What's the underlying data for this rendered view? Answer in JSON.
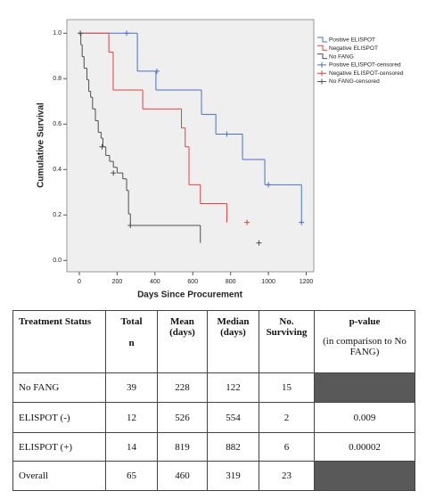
{
  "chart_data": {
    "type": "kaplan-meier",
    "xlabel": "Days Since Procurement",
    "ylabel": "Cumulative Survival",
    "xlim": [
      -66,
      1240
    ],
    "ylim": [
      -0.05,
      1.06
    ],
    "xticks": [
      0,
      200,
      400,
      600,
      800,
      1000,
      1200
    ],
    "yticks": [
      {
        "value": 0,
        "label": "0.0"
      },
      {
        "value": 0.2,
        "label": "0.2"
      },
      {
        "value": 0.4,
        "label": "0.4"
      },
      {
        "value": 0.6,
        "label": "0.6"
      },
      {
        "value": 0.8,
        "label": "0.8"
      },
      {
        "value": 1,
        "label": "1.0"
      }
    ],
    "series": [
      {
        "name": "Positive ELISPOT",
        "color": "#4a6fc4",
        "style": "step",
        "x": [
          0,
          307,
          405,
          646,
          722,
          863,
          981,
          1175
        ],
        "values": [
          1.0,
          0.833,
          0.75,
          0.643,
          0.556,
          0.444,
          0.333,
          0.167
        ]
      },
      {
        "name": "Negative ELISPOT",
        "color": "#e2413f",
        "style": "step",
        "x": [
          0,
          156,
          179,
          335,
          540,
          560,
          580,
          640,
          780
        ],
        "values": [
          1.0,
          0.917,
          0.75,
          0.667,
          0.583,
          0.5,
          0.333,
          0.25,
          0.167
        ]
      },
      {
        "name": "No FANG",
        "color": "#4d4d4d",
        "style": "step",
        "x": [
          0,
          8,
          15,
          25,
          40,
          50,
          60,
          70,
          85,
          100,
          115,
          125,
          140,
          160,
          180,
          200,
          230,
          250,
          260,
          270,
          640
        ],
        "values": [
          1.0,
          0.949,
          0.897,
          0.846,
          0.795,
          0.744,
          0.718,
          0.667,
          0.615,
          0.564,
          0.538,
          0.5,
          0.462,
          0.436,
          0.41,
          0.385,
          0.359,
          0.308,
          0.205,
          0.154,
          0.077
        ]
      },
      {
        "name": "Positive ELISPOT-censored",
        "color": "#4a6fc4",
        "style": "censor",
        "x": [
          250,
          410,
          780,
          1000,
          1175
        ],
        "values": [
          1.0,
          0.833,
          0.556,
          0.333,
          0.167
        ]
      },
      {
        "name": "Negative ELISPOT-censored",
        "color": "#e2413f",
        "style": "censor",
        "x": [
          887
        ],
        "values": [
          0.167
        ]
      },
      {
        "name": "No FANG-censored",
        "color": "#4d4d4d",
        "style": "censor",
        "x": [
          5,
          120,
          180,
          270,
          950
        ],
        "values": [
          1.0,
          0.5,
          0.385,
          0.154,
          0.077
        ]
      }
    ]
  },
  "table": {
    "header": [
      [
        "Treatment Status"
      ],
      [
        "Total",
        "n"
      ],
      [
        "Mean",
        "(days)"
      ],
      [
        "Median",
        "(days)"
      ],
      [
        "No.",
        "Surviving"
      ],
      [
        "p-value",
        "(in comparison to No FANG)"
      ]
    ],
    "rows": [
      [
        "No FANG",
        "39",
        "228",
        "122",
        "15",
        null
      ],
      [
        "ELISPOT (-)",
        "12",
        "526",
        "554",
        "2",
        "0.009"
      ],
      [
        "ELISPOT (+)",
        "14",
        "819",
        "882",
        "6",
        "0.00002"
      ],
      [
        "Overall",
        "65",
        "460",
        "319",
        "23",
        null
      ]
    ]
  }
}
